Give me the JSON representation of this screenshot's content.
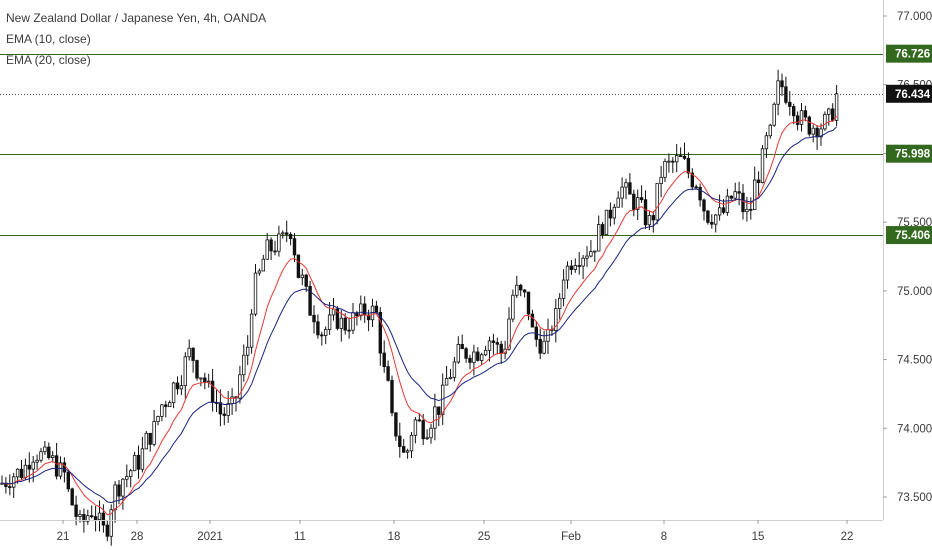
{
  "chart_data": {
    "type": "candlestick",
    "title": "New Zealand Dollar / Japanese Yen, 4h, OANDA",
    "indicators": [
      {
        "name": "EMA (10, close)",
        "color": "#e53935"
      },
      {
        "name": "EMA (20, close)",
        "color": "#1a237e"
      }
    ],
    "ylim": [
      73.35,
      77.1
    ],
    "y_ticks": [
      "77.000",
      "76.500",
      "76.000",
      "75.500",
      "75.000",
      "74.500",
      "74.000",
      "73.500"
    ],
    "xlim": [
      0,
      932
    ],
    "x_ticks": [
      {
        "label": "21",
        "x": 63
      },
      {
        "label": "28",
        "x": 137
      },
      {
        "label": "2021",
        "x": 210
      },
      {
        "label": "11",
        "x": 300
      },
      {
        "label": "18",
        "x": 394
      },
      {
        "label": "25",
        "x": 484
      },
      {
        "label": "Feb",
        "x": 571
      },
      {
        "label": "8",
        "x": 664
      },
      {
        "label": "15",
        "x": 758
      },
      {
        "label": "22",
        "x": 847
      }
    ],
    "horizontal_levels": [
      {
        "value": 76.726,
        "label": "76.726",
        "style": "solid",
        "color": "#33691e"
      },
      {
        "value": 75.998,
        "label": "75.998",
        "style": "solid",
        "color": "#33691e"
      },
      {
        "value": 75.406,
        "label": "75.406",
        "style": "solid",
        "color": "#33691e"
      }
    ],
    "last_price": {
      "value": 76.434,
      "label": "76.434",
      "style": "dotted"
    },
    "price_path": [
      [
        0,
        73.6
      ],
      [
        20,
        73.68
      ],
      [
        35,
        73.82
      ],
      [
        48,
        73.78
      ],
      [
        63,
        73.68
      ],
      [
        72,
        73.45
      ],
      [
        80,
        73.3
      ],
      [
        92,
        73.4
      ],
      [
        105,
        73.25
      ],
      [
        115,
        73.55
      ],
      [
        125,
        73.65
      ],
      [
        137,
        73.75
      ],
      [
        150,
        73.95
      ],
      [
        165,
        74.2
      ],
      [
        178,
        74.35
      ],
      [
        190,
        74.55
      ],
      [
        200,
        74.4
      ],
      [
        212,
        74.25
      ],
      [
        222,
        74.1
      ],
      [
        232,
        74.15
      ],
      [
        245,
        74.5
      ],
      [
        255,
        75.05
      ],
      [
        268,
        75.3
      ],
      [
        280,
        75.35
      ],
      [
        290,
        75.45
      ],
      [
        300,
        75.1
      ],
      [
        312,
        74.85
      ],
      [
        322,
        74.7
      ],
      [
        335,
        74.8
      ],
      [
        345,
        74.75
      ],
      [
        355,
        74.8
      ],
      [
        365,
        74.85
      ],
      [
        375,
        74.85
      ],
      [
        385,
        74.4
      ],
      [
        394,
        74.0
      ],
      [
        405,
        73.8
      ],
      [
        415,
        74.05
      ],
      [
        425,
        74.0
      ],
      [
        438,
        74.15
      ],
      [
        450,
        74.4
      ],
      [
        460,
        74.55
      ],
      [
        475,
        74.55
      ],
      [
        490,
        74.65
      ],
      [
        502,
        74.55
      ],
      [
        515,
        75.0
      ],
      [
        525,
        74.95
      ],
      [
        535,
        74.65
      ],
      [
        545,
        74.6
      ],
      [
        555,
        74.8
      ],
      [
        565,
        75.15
      ],
      [
        575,
        75.25
      ],
      [
        590,
        75.3
      ],
      [
        605,
        75.5
      ],
      [
        620,
        75.75
      ],
      [
        635,
        75.65
      ],
      [
        650,
        75.5
      ],
      [
        664,
        75.9
      ],
      [
        680,
        75.95
      ],
      [
        695,
        75.8
      ],
      [
        708,
        75.55
      ],
      [
        720,
        75.55
      ],
      [
        735,
        75.7
      ],
      [
        748,
        75.55
      ],
      [
        758,
        75.85
      ],
      [
        768,
        76.1
      ],
      [
        780,
        76.5
      ],
      [
        790,
        76.4
      ],
      [
        800,
        76.25
      ],
      [
        810,
        76.2
      ],
      [
        820,
        76.2
      ],
      [
        830,
        76.25
      ],
      [
        837,
        76.43
      ]
    ]
  }
}
